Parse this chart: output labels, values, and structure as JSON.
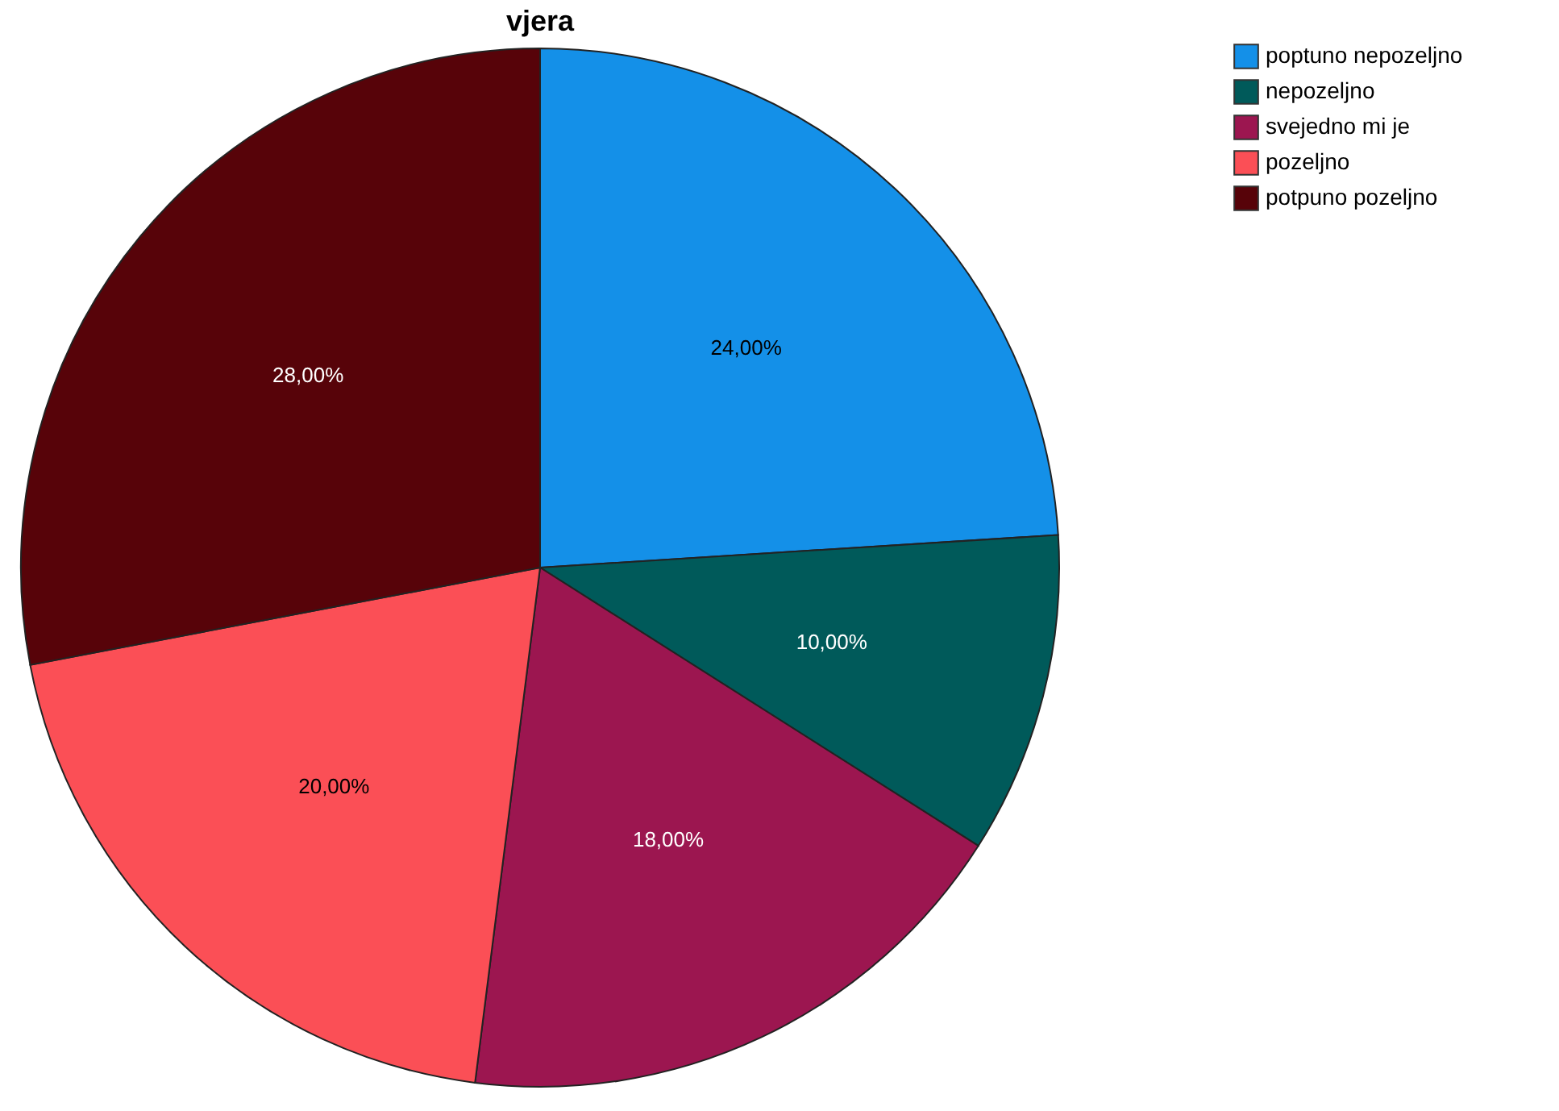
{
  "chart_data": {
    "type": "pie",
    "title": "vjera",
    "categories": [
      "poptuno nepozeljno",
      "nepozeljno",
      "svejedno mi je",
      "pozeljno",
      "potpuno pozeljno"
    ],
    "values": [
      24,
      10,
      18,
      20,
      28
    ],
    "colors": [
      "#1490e8",
      "#005a5a",
      "#9c1650",
      "#fb4f56",
      "#570309"
    ],
    "value_labels": [
      "24,00%",
      "10,00%",
      "18,00%",
      "20,00%",
      "28,00%"
    ],
    "legend": "top right"
  }
}
